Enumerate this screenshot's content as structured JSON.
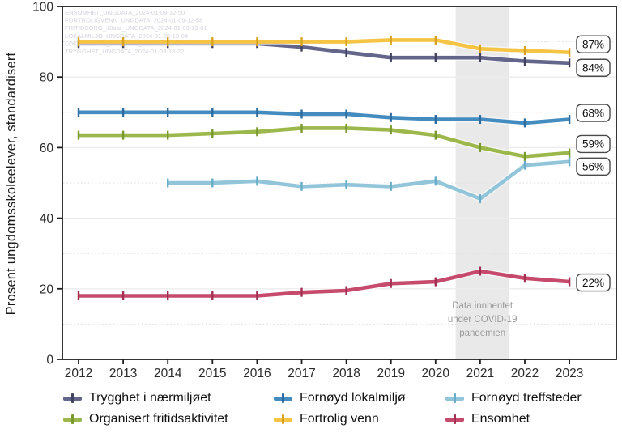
{
  "y_axis": {
    "title": "Prosent ungdomsskoleelever, standardisert",
    "ticks": [
      0,
      20,
      40,
      60,
      80,
      100
    ],
    "range": [
      0,
      100
    ]
  },
  "x_axis": {
    "ticks": [
      "2012",
      "2013",
      "2014",
      "2015",
      "2016",
      "2017",
      "2018",
      "2019",
      "2020",
      "2021",
      "2022",
      "2023"
    ]
  },
  "watermarks": [
    "ENSOMHET_UNGDATA_2024-01-09-12-50",
    "FORTROLIGVENN_UNGDATA_2024-01-09-12-58",
    "FRITIDSORG_10aar_UNGDATA_2024-01-09-13-01",
    "LOKALMILJO_UNGDATA_2024-01-09-13-04",
    "LOKALTILBUD_UNGDATA_2024-01-09-13-03",
    "TRYGGHET_UNGDATA_2024-01-09-18-22"
  ],
  "covid_annotation": {
    "lines": [
      "Data innhentet",
      "under COVID-19",
      "pandemien"
    ],
    "band_years": [
      2020.45,
      2021.65
    ],
    "band_color": "#e9e9e9",
    "text_color": "#9a9a9a"
  },
  "chart_data": {
    "type": "line",
    "x": [
      2012,
      2013,
      2014,
      2015,
      2016,
      2017,
      2018,
      2019,
      2020,
      2021,
      2022,
      2023
    ],
    "xlabel": "",
    "ylabel": "Prosent ungdomsskoleelever, standardisert",
    "ylim": [
      0,
      100
    ],
    "grid": "horizontal: solid at 20/40/60/80, dotted at 10/30/50/70/90",
    "legend_position": "bottom",
    "series": [
      {
        "id": "trygghet",
        "name": "Trygghet i nærmiljøet",
        "color": "#63658a",
        "marker_color": "#41435f",
        "values": [
          89.5,
          89.5,
          89.5,
          89.5,
          89.5,
          88.5,
          87,
          85.5,
          85.5,
          85.5,
          84.5,
          84
        ],
        "end_label": "84%"
      },
      {
        "id": "lokalmiljo",
        "name": "Fornøyd lokalmiljø",
        "color": "#448cc0",
        "marker_color": "#2d6ca0",
        "values": [
          70,
          70,
          70,
          70,
          70,
          69.5,
          69.5,
          68.5,
          68,
          68,
          67,
          68
        ],
        "end_label": "68%"
      },
      {
        "id": "treffsteder",
        "name": "Fornøyd treffsteder",
        "color": "#92c5d9",
        "marker_color": "#68adc9",
        "values": [
          null,
          null,
          50,
          50,
          50.5,
          49,
          49.5,
          49,
          50.5,
          45.5,
          55,
          56
        ],
        "end_label": "56%"
      },
      {
        "id": "fritidsorg",
        "name": "Organisert fritidsaktivitet",
        "color": "#9cb84c",
        "marker_color": "#79992f",
        "values": [
          63.5,
          63.5,
          63.5,
          64,
          64.5,
          65.5,
          65.5,
          65,
          63.5,
          60,
          57.5,
          58.5
        ],
        "end_label": "59%"
      },
      {
        "id": "fortroligvenn",
        "name": "Fortrolig venn",
        "color": "#f6c445",
        "marker_color": "#daa221",
        "values": [
          90,
          90,
          90,
          90,
          90,
          90,
          90,
          90.5,
          90.5,
          88,
          87.5,
          87
        ],
        "end_label": "87%"
      },
      {
        "id": "ensomhet",
        "name": "Ensomhet",
        "color": "#c64a6c",
        "marker_color": "#a32f52",
        "values": [
          18,
          18,
          18,
          18,
          18,
          19,
          19.5,
          21.5,
          22,
          25,
          23,
          22
        ],
        "end_label": "22%"
      }
    ]
  },
  "legend": {
    "order": [
      0,
      1,
      2,
      3,
      4,
      5
    ]
  },
  "colors": {
    "frame": "#1f1f1f",
    "tick_label": "#2b2b2b",
    "grid_solid": "#ececec",
    "grid_dotted": "#dfdfe4",
    "watermark": "#d3d3dd",
    "end_label_border": "#4a4a4a",
    "end_label_text": "#111111"
  }
}
